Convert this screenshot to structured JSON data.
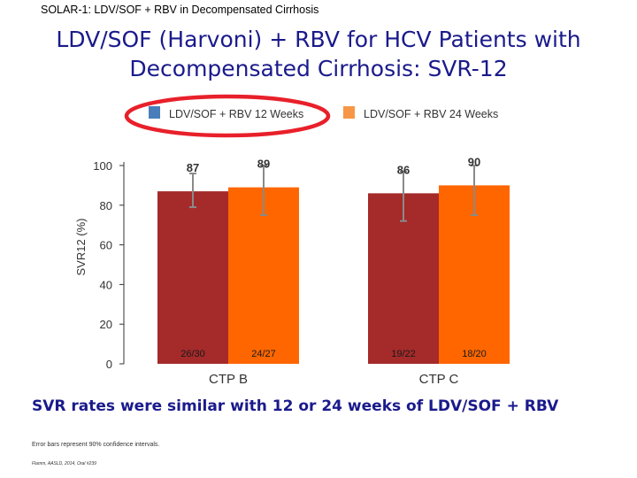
{
  "header": {
    "label": "SOLAR-1: LDV/SOF + RBV in Decompensated Cirrhosis"
  },
  "slide": {
    "title_line1": "LDV/SOF (Harvoni) + RBV for HCV Patients with",
    "title_line2": "Decompensated Cirrhosis: SVR-12",
    "conclusion": "SVR rates were similar with 12 or 24 weeks of LDV/SOF + RBV",
    "footnote": "Error bars represent 90% confidence intervals.",
    "citation": "Flamm, AASLD, 2014, Oral #239"
  },
  "chart_data": {
    "type": "bar",
    "title": "",
    "xlabel": "",
    "ylabel": "SVR12 (%)",
    "ylim": [
      0,
      100
    ],
    "yticks": [
      0,
      20,
      40,
      60,
      80,
      100
    ],
    "categories": [
      "CTP B",
      "CTP C"
    ],
    "series": [
      {
        "name": "LDV/SOF + RBV 12 Weeks",
        "color": "#a52a2a",
        "values": [
          87,
          86
        ],
        "error_low": [
          79,
          72
        ],
        "error_high": [
          96,
          97
        ],
        "n_labels": [
          "26/30",
          "19/22"
        ]
      },
      {
        "name": "LDV/SOF + RBV 24 Weeks",
        "color": "#ff6600",
        "values": [
          89,
          90
        ],
        "error_low": [
          75,
          75
        ],
        "error_high": [
          100,
          100
        ],
        "n_labels": [
          "24/27",
          "18/20"
        ]
      }
    ],
    "legend_position": "top",
    "highlight": {
      "legend_item": "LDV/SOF + RBV 12 Weeks",
      "color": "#e8202a"
    },
    "colors": {
      "bar_label": "#333333",
      "axis": "#333333",
      "n_label": "#1a1a1a",
      "legend_swatch_12": "#4a7ebb",
      "legend_swatch_24": "#f79646"
    }
  }
}
